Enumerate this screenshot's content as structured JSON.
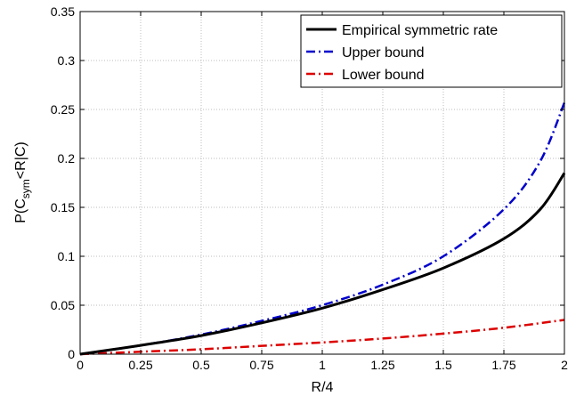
{
  "chart_data": {
    "type": "line",
    "title": "",
    "xlabel": "R/4",
    "ylabel_main": "P(C",
    "ylabel_sub": "sym",
    "ylabel_rest": "<R|C)",
    "xlim": [
      0,
      2
    ],
    "ylim": [
      0,
      0.35
    ],
    "xticks": [
      0,
      0.25,
      0.5,
      0.75,
      1,
      1.25,
      1.5,
      1.75,
      2
    ],
    "xtick_labels": [
      "0",
      "0.25",
      "0.5",
      "0.75",
      "1",
      "1.25",
      "1.5",
      "1.75",
      "2"
    ],
    "yticks": [
      0,
      0.05,
      0.1,
      0.15,
      0.2,
      0.25,
      0.3,
      0.35
    ],
    "ytick_labels": [
      "0",
      "0.05",
      "0.1",
      "0.15",
      "0.2",
      "0.25",
      "0.3",
      "0.35"
    ],
    "grid": true,
    "legend_position": "top-right",
    "series": [
      {
        "name": "Empirical symmetric rate",
        "color": "#000000",
        "style": "solid",
        "x": [
          0,
          0.25,
          0.5,
          0.75,
          1,
          1.25,
          1.5,
          1.75,
          1.9,
          2
        ],
        "y": [
          0,
          0.009,
          0.019,
          0.032,
          0.047,
          0.066,
          0.088,
          0.118,
          0.148,
          0.185
        ]
      },
      {
        "name": "Upper bound",
        "color": "#0000cc",
        "style": "dashdot",
        "x": [
          0,
          0.25,
          0.5,
          0.75,
          1,
          1.25,
          1.5,
          1.75,
          1.9,
          2
        ],
        "y": [
          0,
          0.009,
          0.02,
          0.034,
          0.05,
          0.071,
          0.1,
          0.148,
          0.197,
          0.257
        ]
      },
      {
        "name": "Lower bound",
        "color": "#dd0000",
        "style": "dashdot",
        "x": [
          0,
          0.25,
          0.5,
          0.75,
          1,
          1.25,
          1.5,
          1.75,
          2
        ],
        "y": [
          0,
          0.0025,
          0.005,
          0.0085,
          0.012,
          0.016,
          0.021,
          0.027,
          0.035
        ]
      }
    ]
  }
}
